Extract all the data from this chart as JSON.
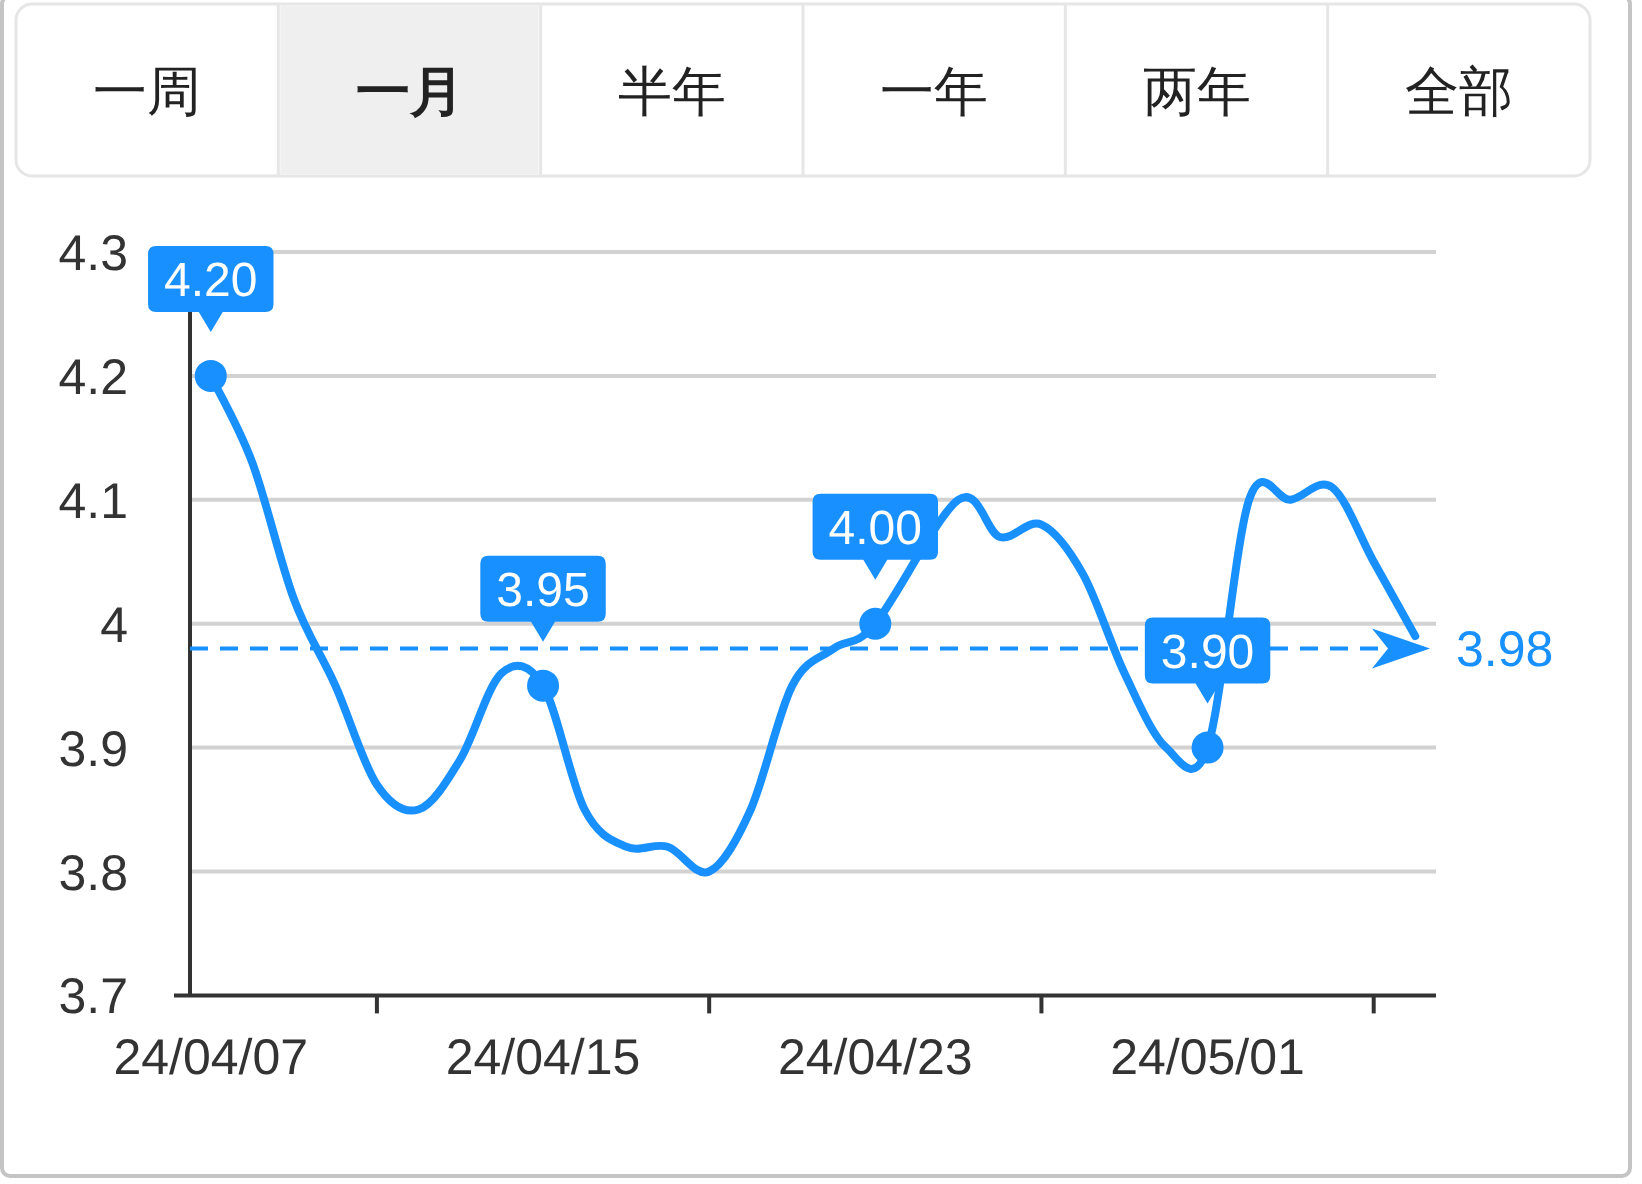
{
  "chart_data": {
    "type": "line",
    "annotations": [
      "一周",
      "**一月**",
      "半年",
      "一年",
      "两年",
      "全部",
      {
        "text": "4.20",
        "x": "24/04/07",
        "y": 4.2
      },
      {
        "text": "3.95",
        "x": "24/04/15",
        "y": 3.95
      },
      {
        "text": "4.00",
        "x": "24/04/23",
        "y": 4.0
      },
      {
        "text": "3.90",
        "x": "24/05/01",
        "y": 3.9
      }
    ],
    "categories": [
      "24/04/07",
      null,
      null,
      null,
      null,
      null,
      null,
      null,
      "24/04/15",
      null,
      null,
      null,
      null,
      null,
      null,
      null,
      "24/04/23",
      null,
      null,
      null,
      null,
      null,
      null,
      null,
      "24/05/01",
      null,
      null,
      null,
      null,
      null
    ],
    "values": [
      4.2,
      4.13,
      4.02,
      3.95,
      3.87,
      3.85,
      3.89,
      3.96,
      3.95,
      3.85,
      3.82,
      3.82,
      3.8,
      3.85,
      3.95,
      3.98,
      4.0,
      null,
      4.1,
      4.07,
      4.08,
      4.04,
      3.96,
      3.9,
      3.9,
      4.1,
      4.1,
      4.11,
      4.05,
      3.99
    ],
    "color": "#1890ff",
    "ylim": [
      3.7,
      4.3
    ],
    "yticks": [
      3.7,
      3.8,
      3.9,
      4,
      4.1,
      4.2,
      4.3
    ],
    "grid": "y",
    "marker": "none",
    "line_style": "solid",
    "ref_lines": [
      {
        "axis": "y",
        "value": 3.98,
        "label": "3.98",
        "color": "#1890ff",
        "line_style": "dashed"
      }
    ]
  }
}
